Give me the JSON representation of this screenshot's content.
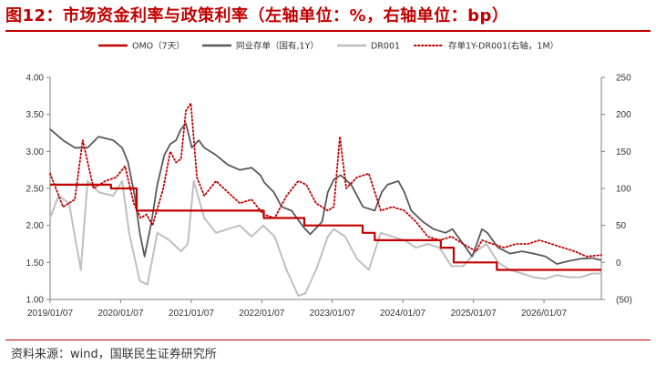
{
  "title": "图12：市场资金利率与政策利率（左轴单位：%，右轴单位：bp）",
  "source": "资料来源：wind，国联民生证券研究所",
  "chart_data": {
    "type": "line",
    "x_ticks": [
      "2019/01/07",
      "2020/01/07",
      "2021/01/07",
      "2022/01/07",
      "2023/01/07",
      "2024/01/07",
      "2025/01/07",
      "2026/01/07"
    ],
    "x_range": [
      "2019/01/07",
      "2026/10/31"
    ],
    "y_left_ticks": [
      "1.00",
      "1.50",
      "2.00",
      "2.50",
      "3.00",
      "3.50",
      "4.00"
    ],
    "y_left_lim": [
      1.0,
      4.0
    ],
    "y_right_ticks": [
      "(50)",
      "0",
      "50",
      "100",
      "150",
      "200",
      "250"
    ],
    "y_right_lim": [
      -50,
      250
    ],
    "legend_position": "top",
    "series": [
      {
        "name": "OMO（7天）",
        "axis": "left",
        "color": "#c00000",
        "style": "step",
        "points": [
          [
            "2019/01/07",
            2.55
          ],
          [
            "2019/11/18",
            2.5
          ],
          [
            "2020/03/30",
            2.2
          ],
          [
            "2022/01/17",
            2.1
          ],
          [
            "2022/08/15",
            2.0
          ],
          [
            "2023/06/13",
            1.9
          ],
          [
            "2023/08/15",
            1.8
          ],
          [
            "2024/07/22",
            1.7
          ],
          [
            "2024/09/27",
            1.5
          ],
          [
            "2025/05/08",
            1.4
          ],
          [
            "2026/10/31",
            1.4
          ]
        ]
      },
      {
        "name": "同业存单（国有,1Y）",
        "axis": "left",
        "color": "#595959",
        "points": [
          [
            "2019/01/07",
            3.3
          ],
          [
            "2019/03/15",
            3.15
          ],
          [
            "2019/05/15",
            3.05
          ],
          [
            "2019/07/20",
            3.05
          ],
          [
            "2019/09/15",
            3.2
          ],
          [
            "2019/11/30",
            3.15
          ],
          [
            "2020/01/15",
            3.05
          ],
          [
            "2020/02/15",
            2.85
          ],
          [
            "2020/03/20",
            2.4
          ],
          [
            "2020/04/15",
            1.9
          ],
          [
            "2020/05/10",
            1.58
          ],
          [
            "2020/06/15",
            2.05
          ],
          [
            "2020/07/15",
            2.55
          ],
          [
            "2020/08/20",
            2.95
          ],
          [
            "2020/09/20",
            3.1
          ],
          [
            "2020/10/20",
            3.15
          ],
          [
            "2020/11/15",
            3.3
          ],
          [
            "2020/12/10",
            3.38
          ],
          [
            "2021/01/10",
            3.05
          ],
          [
            "2021/02/15",
            3.15
          ],
          [
            "2021/03/15",
            3.05
          ],
          [
            "2021/05/15",
            2.95
          ],
          [
            "2021/07/15",
            2.82
          ],
          [
            "2021/09/15",
            2.75
          ],
          [
            "2021/11/15",
            2.78
          ],
          [
            "2021/12/31",
            2.68
          ],
          [
            "2022/01/20",
            2.58
          ],
          [
            "2022/03/10",
            2.45
          ],
          [
            "2022/04/20",
            2.25
          ],
          [
            "2022/06/10",
            2.2
          ],
          [
            "2022/08/10",
            1.98
          ],
          [
            "2022/09/15",
            1.88
          ],
          [
            "2022/11/15",
            2.05
          ],
          [
            "2022/12/15",
            2.45
          ],
          [
            "2023/01/15",
            2.62
          ],
          [
            "2023/02/20",
            2.68
          ],
          [
            "2023/04/15",
            2.55
          ],
          [
            "2023/06/15",
            2.25
          ],
          [
            "2023/08/15",
            2.2
          ],
          [
            "2023/09/20",
            2.45
          ],
          [
            "2023/10/20",
            2.55
          ],
          [
            "2023/12/15",
            2.6
          ],
          [
            "2024/01/15",
            2.45
          ],
          [
            "2024/02/20",
            2.2
          ],
          [
            "2024/04/20",
            2.05
          ],
          [
            "2024/06/15",
            1.95
          ],
          [
            "2024/08/15",
            1.9
          ],
          [
            "2024/09/20",
            1.95
          ],
          [
            "2024/11/15",
            1.75
          ],
          [
            "2024/12/31",
            1.58
          ],
          [
            "2025/01/20",
            1.72
          ],
          [
            "2025/02/20",
            1.95
          ],
          [
            "2025/03/20",
            1.9
          ],
          [
            "2025/05/15",
            1.7
          ],
          [
            "2025/07/15",
            1.62
          ],
          [
            "2025/09/15",
            1.65
          ],
          [
            "2025/11/15",
            1.62
          ],
          [
            "2026/01/15",
            1.58
          ],
          [
            "2026/03/15",
            1.48
          ],
          [
            "2026/05/15",
            1.52
          ],
          [
            "2026/07/15",
            1.55
          ],
          [
            "2026/09/15",
            1.56
          ],
          [
            "2026/10/31",
            1.53
          ]
        ]
      },
      {
        "name": "DR001",
        "axis": "left",
        "color": "#bfbfbf",
        "points": [
          [
            "2019/01/07",
            2.1
          ],
          [
            "2019/02/20",
            2.4
          ],
          [
            "2019/04/15",
            2.3
          ],
          [
            "2019/06/15",
            1.4
          ],
          [
            "2019/07/20",
            2.6
          ],
          [
            "2019/09/15",
            2.45
          ],
          [
            "2019/11/30",
            2.4
          ],
          [
            "2020/01/15",
            2.6
          ],
          [
            "2020/02/20",
            1.9
          ],
          [
            "2020/04/15",
            1.25
          ],
          [
            "2020/05/25",
            1.2
          ],
          [
            "2020/07/15",
            1.9
          ],
          [
            "2020/09/15",
            1.8
          ],
          [
            "2020/11/15",
            1.65
          ],
          [
            "2020/12/20",
            1.75
          ],
          [
            "2021/01/20",
            2.6
          ],
          [
            "2021/03/15",
            2.1
          ],
          [
            "2021/05/15",
            1.9
          ],
          [
            "2021/07/15",
            1.95
          ],
          [
            "2021/09/15",
            2.0
          ],
          [
            "2021/11/15",
            1.85
          ],
          [
            "2022/01/15",
            2.0
          ],
          [
            "2022/03/15",
            1.85
          ],
          [
            "2022/05/15",
            1.4
          ],
          [
            "2022/07/15",
            1.05
          ],
          [
            "2022/08/20",
            1.08
          ],
          [
            "2022/10/15",
            1.4
          ],
          [
            "2022/12/15",
            1.85
          ],
          [
            "2023/01/15",
            1.95
          ],
          [
            "2023/03/15",
            1.85
          ],
          [
            "2023/05/15",
            1.55
          ],
          [
            "2023/07/15",
            1.4
          ],
          [
            "2023/09/15",
            1.9
          ],
          [
            "2023/11/15",
            1.85
          ],
          [
            "2024/01/15",
            1.8
          ],
          [
            "2024/03/15",
            1.7
          ],
          [
            "2024/05/15",
            1.75
          ],
          [
            "2024/07/15",
            1.7
          ],
          [
            "2024/09/15",
            1.45
          ],
          [
            "2024/11/15",
            1.45
          ],
          [
            "2025/01/20",
            1.65
          ],
          [
            "2025/03/15",
            1.75
          ],
          [
            "2025/05/15",
            1.5
          ],
          [
            "2025/07/15",
            1.4
          ],
          [
            "2025/09/15",
            1.35
          ],
          [
            "2025/11/15",
            1.3
          ],
          [
            "2026/01/15",
            1.28
          ],
          [
            "2026/03/15",
            1.33
          ],
          [
            "2026/05/15",
            1.3
          ],
          [
            "2026/07/15",
            1.3
          ],
          [
            "2026/09/15",
            1.35
          ],
          [
            "2026/10/31",
            1.35
          ]
        ]
      },
      {
        "name": "存单1Y-DR001(右轴，1M）",
        "axis": "right",
        "color": "#c00000",
        "style": "dotted",
        "points": [
          [
            "2019/01/07",
            120
          ],
          [
            "2019/03/15",
            75
          ],
          [
            "2019/05/15",
            85
          ],
          [
            "2019/06/25",
            165
          ],
          [
            "2019/08/20",
            100
          ],
          [
            "2019/10/20",
            110
          ],
          [
            "2019/12/15",
            115
          ],
          [
            "2020/01/30",
            130
          ],
          [
            "2020/03/15",
            80
          ],
          [
            "2020/04/20",
            60
          ],
          [
            "2020/05/20",
            65
          ],
          [
            "2020/06/20",
            50
          ],
          [
            "2020/08/15",
            100
          ],
          [
            "2020/09/20",
            150
          ],
          [
            "2020/10/20",
            135
          ],
          [
            "2020/11/15",
            140
          ],
          [
            "2020/12/10",
            205
          ],
          [
            "2021/01/05",
            215
          ],
          [
            "2021/02/05",
            115
          ],
          [
            "2021/03/15",
            90
          ],
          [
            "2021/05/15",
            110
          ],
          [
            "2021/07/15",
            95
          ],
          [
            "2021/09/15",
            80
          ],
          [
            "2021/11/15",
            85
          ],
          [
            "2022/01/15",
            65
          ],
          [
            "2022/03/15",
            60
          ],
          [
            "2022/05/15",
            90
          ],
          [
            "2022/07/15",
            110
          ],
          [
            "2022/08/25",
            105
          ],
          [
            "2022/10/15",
            80
          ],
          [
            "2022/12/15",
            70
          ],
          [
            "2023/01/15",
            75
          ],
          [
            "2023/02/15",
            170
          ],
          [
            "2023/03/20",
            100
          ],
          [
            "2023/05/15",
            115
          ],
          [
            "2023/07/15",
            120
          ],
          [
            "2023/09/15",
            70
          ],
          [
            "2023/11/15",
            75
          ],
          [
            "2024/01/15",
            70
          ],
          [
            "2024/03/15",
            55
          ],
          [
            "2024/05/15",
            35
          ],
          [
            "2024/07/15",
            30
          ],
          [
            "2024/09/15",
            35
          ],
          [
            "2024/11/15",
            25
          ],
          [
            "2025/01/20",
            15
          ],
          [
            "2025/02/20",
            30
          ],
          [
            "2025/04/15",
            25
          ],
          [
            "2025/06/15",
            20
          ],
          [
            "2025/08/15",
            25
          ],
          [
            "2025/10/15",
            25
          ],
          [
            "2025/12/15",
            30
          ],
          [
            "2026/02/15",
            25
          ],
          [
            "2026/04/15",
            20
          ],
          [
            "2026/06/15",
            15
          ],
          [
            "2026/08/15",
            8
          ],
          [
            "2026/10/31",
            10
          ]
        ]
      }
    ]
  }
}
